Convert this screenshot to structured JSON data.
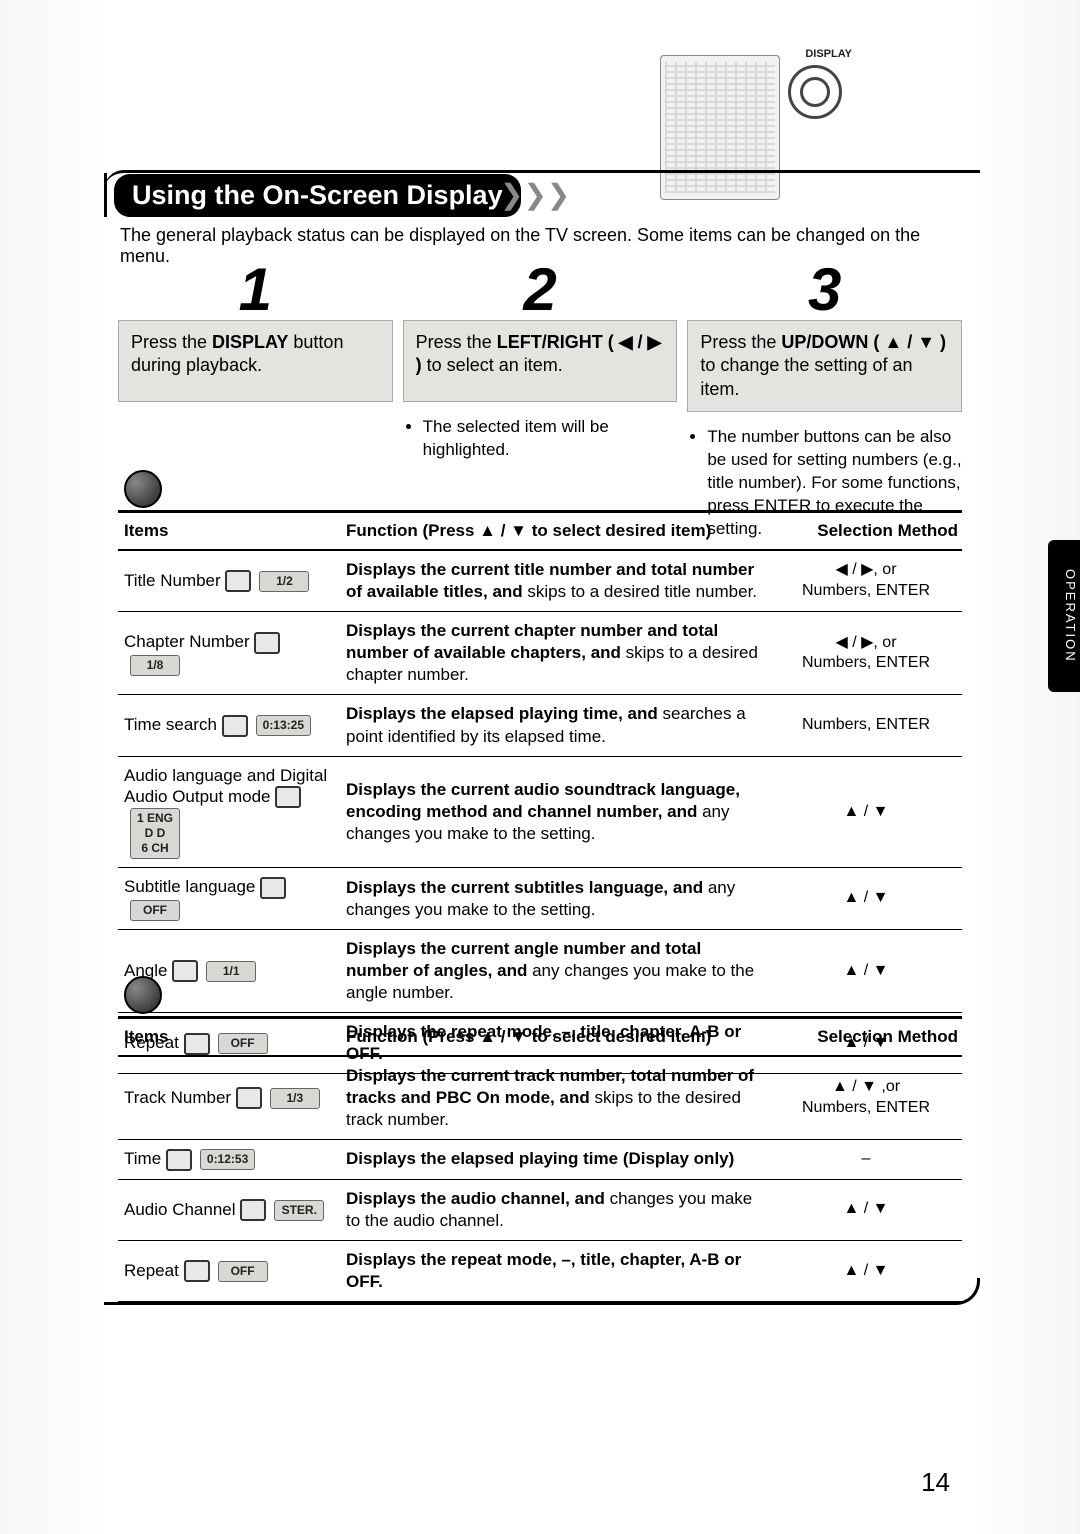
{
  "page_number": "14",
  "side_tab": "OPERATION",
  "remote": {
    "label": "DISPLAY"
  },
  "header": {
    "title": "Using the On-Screen Display",
    "intro": "The general playback status can be displayed on the TV screen. Some items can be changed on the menu."
  },
  "steps": [
    {
      "num": "1",
      "box_pre": "Press the ",
      "box_bold": "DISPLAY",
      "box_post": " button during playback.",
      "bullets": []
    },
    {
      "num": "2",
      "box_pre": "Press the ",
      "box_bold": "LEFT/RIGHT ( ◀ / ▶ )",
      "box_post": " to select an item.",
      "bullets": [
        "The selected item will be highlighted."
      ]
    },
    {
      "num": "3",
      "box_pre": "Press the ",
      "box_bold": "UP/DOWN ( ▲ / ▼ )",
      "box_post": " to change the setting of an item.",
      "bullets": [
        "The number buttons can be also be used for setting numbers (e.g., title number). For some functions, press ENTER to execute the setting."
      ]
    }
  ],
  "table1": {
    "headers": {
      "items": "Items",
      "function": "Function (Press ▲ / ▼ to select desired item)",
      "selection": "Selection Method"
    },
    "rows": [
      {
        "item": "Title Number",
        "badge": "1/2",
        "icon": "T",
        "func_bold": "Displays the current title number and total number of available titles, and",
        "func_rest": " skips to a desired title number.",
        "sel": "◀ / ▶, or\nNumbers, ENTER"
      },
      {
        "item": "Chapter Number",
        "badge": "1/8",
        "icon": "C",
        "func_bold": "Displays the current chapter number and total number of available chapters, and",
        "func_rest": " skips to a desired chapter number.",
        "sel": "◀ / ▶, or\nNumbers, ENTER"
      },
      {
        "item": "Time search",
        "badge": "0:13:25",
        "icon": "⏱",
        "func_bold": "Displays the elapsed playing time, and",
        "func_rest": " searches a point identified by its elapsed time.",
        "sel": "Numbers, ENTER"
      },
      {
        "item": "Audio language and Digital Audio Output mode",
        "badge": "1 ENG\nD D\n6 CH",
        "icon": "🔊",
        "func_bold": "Displays the current audio soundtrack language, encoding method and channel number, and",
        "func_rest": " any changes you make to the setting.",
        "sel": "▲ / ▼"
      },
      {
        "item": "Subtitle language",
        "badge": "OFF",
        "icon": "…",
        "func_bold": "Displays the current subtitles language, and",
        "func_rest": " any changes you make to the setting.",
        "sel": "▲ / ▼"
      },
      {
        "item": "Angle",
        "badge": "1/1",
        "icon": "🎬",
        "func_bold": "Displays the current angle number and total number of angles, and",
        "func_rest": " any changes you make to the angle number.",
        "sel": "▲ / ▼"
      },
      {
        "item": "Repeat",
        "badge": "OFF",
        "icon": "↻",
        "func_bold": "Displays the repeat mode, –, title, chapter, A-B or OFF.",
        "func_rest": "",
        "sel": "▲ / ▼"
      }
    ]
  },
  "table2": {
    "headers": {
      "items": "Items",
      "function": "Function (Press ▲ / ▼ to select desired item)",
      "selection": "Selection Method"
    },
    "rows": [
      {
        "item": "Track Number",
        "badge": "1/3",
        "icon": "T",
        "func_bold": "Displays the current track number, total number of tracks and PBC On mode, and",
        "func_rest": " skips to the desired track number.",
        "sel": "▲ / ▼ ,or\nNumbers, ENTER"
      },
      {
        "item": "Time",
        "badge": "0:12:53",
        "icon": "⏱",
        "func_bold": "Displays the elapsed playing time (Display only)",
        "func_rest": "",
        "sel": "–"
      },
      {
        "item": "Audio Channel",
        "badge": "STER.",
        "icon": "🔊",
        "func_bold": "Displays the audio channel, and",
        "func_rest": " changes you make to the audio channel.",
        "sel": "▲ / ▼"
      },
      {
        "item": "Repeat",
        "badge": "OFF",
        "icon": "↻",
        "func_bold": "Displays the repeat mode, –, title, chapter, A-B or OFF.",
        "func_rest": "",
        "sel": "▲ / ▼"
      }
    ]
  }
}
